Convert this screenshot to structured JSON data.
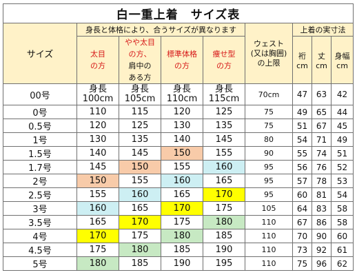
{
  "title": "白一重上着　サイズ表",
  "header": {
    "size_label": "サイズ",
    "group_label": "身長と体格により、合うサイズが異なります",
    "waist_label": [
      "ウェスト",
      "(又は胸囲)",
      "の上限"
    ],
    "measure_group": "上着の実寸法",
    "body_types": [
      {
        "lines": [
          "太目",
          "の方"
        ],
        "tail": []
      },
      {
        "lines": [
          "やや太目",
          "の方、"
        ],
        "tail": [
          "肩中の",
          "ある方"
        ]
      },
      {
        "lines": [
          "標準体格",
          "の方"
        ],
        "tail": []
      },
      {
        "lines": [
          "痩せ型",
          "の方"
        ],
        "tail": []
      }
    ],
    "measure_cols": [
      {
        "name": "裄",
        "unit": "cm"
      },
      {
        "name": "丈",
        "unit": "cm"
      },
      {
        "name": "身幅",
        "unit": "cm"
      }
    ]
  },
  "height_prefix": "身長",
  "rows": [
    {
      "size": "00号",
      "heights": [
        "100cm",
        "105cm",
        "110cm",
        "115cm"
      ],
      "waist": "70cm",
      "yuki": "47",
      "take": "63",
      "mihaba": "42",
      "hl": [
        "",
        "",
        "",
        ""
      ]
    },
    {
      "size": "0号",
      "heights": [
        "110",
        "115",
        "120",
        "125"
      ],
      "waist": "75",
      "yuki": "49",
      "take": "65",
      "mihaba": "44",
      "hl": [
        "",
        "",
        "",
        ""
      ]
    },
    {
      "size": "0.5号",
      "heights": [
        "120",
        "125",
        "130",
        "135"
      ],
      "waist": "75",
      "yuki": "51",
      "take": "67",
      "mihaba": "45",
      "hl": [
        "",
        "",
        "",
        ""
      ]
    },
    {
      "size": "1号",
      "heights": [
        "130",
        "135",
        "140",
        "145"
      ],
      "waist": "80",
      "yuki": "54",
      "take": "71",
      "mihaba": "49",
      "hl": [
        "",
        "",
        "",
        ""
      ]
    },
    {
      "size": "1.5号",
      "heights": [
        "140",
        "145",
        "150",
        "155"
      ],
      "waist": "90",
      "yuki": "55",
      "take": "74",
      "mihaba": "51",
      "hl": [
        "",
        "",
        "orange",
        ""
      ]
    },
    {
      "size": "1.7号",
      "heights": [
        "145",
        "150",
        "155",
        "160"
      ],
      "waist": "95",
      "yuki": "56",
      "take": "76",
      "mihaba": "52",
      "hl": [
        "",
        "orange",
        "",
        "blue"
      ]
    },
    {
      "size": "2号",
      "heights": [
        "150",
        "155",
        "160",
        "165"
      ],
      "waist": "95",
      "yuki": "57",
      "take": "78",
      "mihaba": "53",
      "hl": [
        "orange",
        "",
        "blue",
        ""
      ]
    },
    {
      "size": "2.5号",
      "heights": [
        "155",
        "160",
        "165",
        "170"
      ],
      "waist": "95",
      "yuki": "60",
      "take": "81",
      "mihaba": "54",
      "hl": [
        "",
        "blue",
        "",
        "yellow"
      ]
    },
    {
      "size": "3号",
      "heights": [
        "160",
        "165",
        "170",
        "175"
      ],
      "waist": "105",
      "yuki": "64",
      "take": "83",
      "mihaba": "58",
      "hl": [
        "blue",
        "",
        "yellow",
        ""
      ]
    },
    {
      "size": "3.5号",
      "heights": [
        "165",
        "170",
        "175",
        "180"
      ],
      "waist": "110",
      "yuki": "67",
      "take": "86",
      "mihaba": "58",
      "hl": [
        "",
        "yellow",
        "",
        "green"
      ]
    },
    {
      "size": "4号",
      "heights": [
        "170",
        "175",
        "180",
        "185"
      ],
      "waist": "110",
      "yuki": "70",
      "take": "90",
      "mihaba": "60",
      "hl": [
        "yellow",
        "",
        "green",
        ""
      ]
    },
    {
      "size": "4.5号",
      "heights": [
        "175",
        "180",
        "185",
        "190"
      ],
      "waist": "110",
      "yuki": "73",
      "take": "92",
      "mihaba": "61",
      "hl": [
        "",
        "green",
        "",
        ""
      ]
    },
    {
      "size": "5号",
      "heights": [
        "180",
        "185",
        "190",
        "195"
      ],
      "waist": "110",
      "yuki": "75",
      "take": "96",
      "mihaba": "62",
      "hl": [
        "green",
        "",
        "",
        ""
      ]
    }
  ],
  "colors": {
    "header_bg": "#fff2c8",
    "body_type_text": "#d61818",
    "orange": "#f8cba9",
    "blue": "#cdeff3",
    "yellow": "#ffff00",
    "green": "#c7e9c3"
  }
}
